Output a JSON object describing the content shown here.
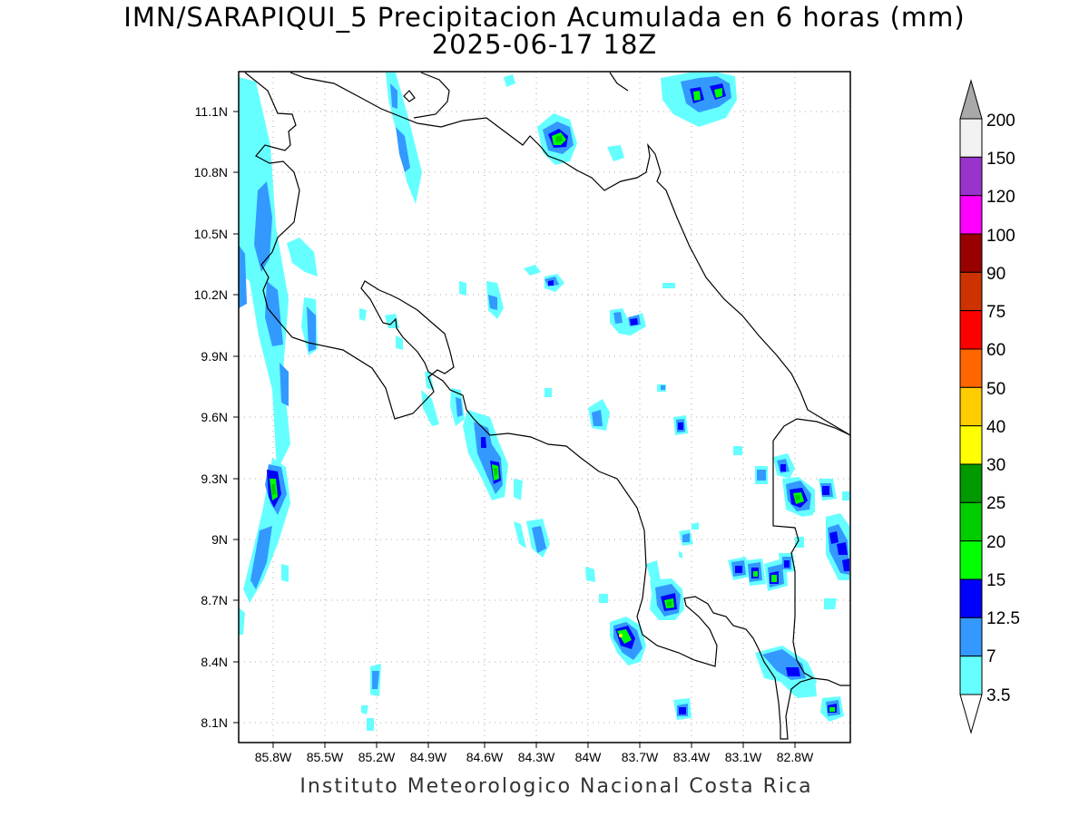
{
  "title": {
    "line1": "IMN/SARAPIQUI_5 Precipitacion Acumulada en 6 horas (mm)",
    "line2": "2025-06-17 18Z"
  },
  "footer": "Instituto Meteorologico Nacional Costa Rica",
  "map": {
    "lon_ticks": [
      "85.8W",
      "85.5W",
      "85.2W",
      "84.9W",
      "84.6W",
      "84.3W",
      "84W",
      "83.7W",
      "83.4W",
      "83.1W",
      "82.8W"
    ],
    "lat_ticks": [
      "11.1N",
      "10.8N",
      "10.5N",
      "10.2N",
      "9.9N",
      "9.6N",
      "9.3N",
      "9N",
      "8.7N",
      "8.4N",
      "8.1N"
    ],
    "lon_range": [
      -85.97,
      -82.58
    ],
    "lat_range": [
      8.01,
      11.31
    ]
  },
  "colorbar": {
    "labels": [
      "200",
      "150",
      "120",
      "100",
      "90",
      "75",
      "60",
      "50",
      "40",
      "30",
      "25",
      "20",
      "15",
      "12.5",
      "7",
      "3.5"
    ],
    "colors": [
      "#a9a9a9",
      "#f2f2f2",
      "#9933cc",
      "#ff00ff",
      "#990000",
      "#cc3300",
      "#ff0000",
      "#ff6600",
      "#ffcc00",
      "#ffff00",
      "#009900",
      "#00cc00",
      "#00ff00",
      "#0000ff",
      "#3399ff",
      "#66ffff"
    ]
  },
  "precip_colors": {
    "3.5": "#66ffff",
    "7": "#3399ff",
    "12.5": "#0000ff",
    "15": "#00ff00",
    "20": "#00cc00",
    "30": "#ffff00"
  }
}
